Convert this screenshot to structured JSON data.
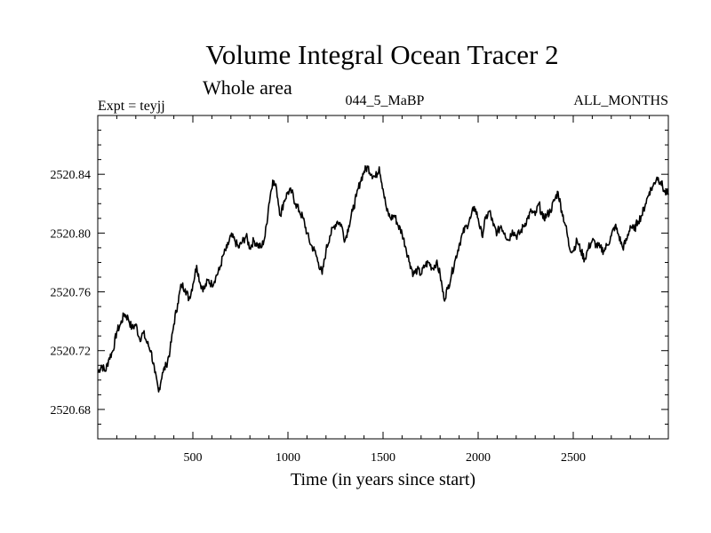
{
  "chart_data": {
    "type": "line",
    "title": "Volume Integral Ocean Tracer 2",
    "subtitle": "Whole area",
    "annotations": {
      "left": "Expt = teyjj",
      "center": "044_5_MaBP",
      "right": "ALL_MONTHS"
    },
    "xlabel": "Time (in years since start)",
    "ylabel": "",
    "xlim": [
      0,
      3000
    ],
    "ylim": [
      2520.66,
      2520.88
    ],
    "x_ticks": [
      500,
      1000,
      1500,
      2000,
      2500
    ],
    "x_tick_labels": [
      "500",
      "1000",
      "1500",
      "2000",
      "2500"
    ],
    "y_ticks": [
      2520.68,
      2520.72,
      2520.76,
      2520.8,
      2520.84
    ],
    "y_tick_labels": [
      "2520.68",
      "2520.72",
      "2520.76",
      "2520.80",
      "2520.84"
    ],
    "grid": false,
    "series": [
      {
        "points": [
          [
            0,
            2520.705
          ],
          [
            20,
            2520.71
          ],
          [
            40,
            2520.706
          ],
          [
            60,
            2520.715
          ],
          [
            80,
            2520.72
          ],
          [
            100,
            2520.733
          ],
          [
            120,
            2520.738
          ],
          [
            140,
            2520.745
          ],
          [
            160,
            2520.742
          ],
          [
            180,
            2520.735
          ],
          [
            200,
            2520.738
          ],
          [
            220,
            2520.728
          ],
          [
            240,
            2520.732
          ],
          [
            260,
            2520.725
          ],
          [
            280,
            2520.72
          ],
          [
            300,
            2520.705
          ],
          [
            320,
            2520.692
          ],
          [
            340,
            2520.705
          ],
          [
            360,
            2520.71
          ],
          [
            380,
            2520.72
          ],
          [
            400,
            2520.738
          ],
          [
            420,
            2520.752
          ],
          [
            440,
            2520.765
          ],
          [
            460,
            2520.762
          ],
          [
            480,
            2520.755
          ],
          [
            500,
            2520.765
          ],
          [
            520,
            2520.778
          ],
          [
            540,
            2520.765
          ],
          [
            560,
            2520.762
          ],
          [
            580,
            2520.768
          ],
          [
            600,
            2520.765
          ],
          [
            620,
            2520.77
          ],
          [
            640,
            2520.775
          ],
          [
            660,
            2520.785
          ],
          [
            680,
            2520.79
          ],
          [
            700,
            2520.798
          ],
          [
            720,
            2520.795
          ],
          [
            740,
            2520.79
          ],
          [
            760,
            2520.794
          ],
          [
            780,
            2520.798
          ],
          [
            800,
            2520.79
          ],
          [
            820,
            2520.795
          ],
          [
            840,
            2520.792
          ],
          [
            860,
            2520.79
          ],
          [
            880,
            2520.798
          ],
          [
            900,
            2520.82
          ],
          [
            920,
            2520.836
          ],
          [
            940,
            2520.83
          ],
          [
            960,
            2520.812
          ],
          [
            980,
            2520.822
          ],
          [
            1000,
            2520.828
          ],
          [
            1020,
            2520.828
          ],
          [
            1040,
            2520.82
          ],
          [
            1060,
            2520.815
          ],
          [
            1080,
            2520.81
          ],
          [
            1100,
            2520.8
          ],
          [
            1120,
            2520.792
          ],
          [
            1140,
            2520.788
          ],
          [
            1160,
            2520.78
          ],
          [
            1180,
            2520.772
          ],
          [
            1200,
            2520.788
          ],
          [
            1220,
            2520.798
          ],
          [
            1240,
            2520.804
          ],
          [
            1260,
            2520.808
          ],
          [
            1280,
            2520.806
          ],
          [
            1300,
            2520.795
          ],
          [
            1320,
            2520.805
          ],
          [
            1340,
            2520.815
          ],
          [
            1360,
            2520.825
          ],
          [
            1380,
            2520.835
          ],
          [
            1400,
            2520.842
          ],
          [
            1420,
            2520.845
          ],
          [
            1440,
            2520.84
          ],
          [
            1460,
            2520.838
          ],
          [
            1480,
            2520.845
          ],
          [
            1500,
            2520.83
          ],
          [
            1520,
            2520.815
          ],
          [
            1540,
            2520.81
          ],
          [
            1560,
            2520.812
          ],
          [
            1580,
            2520.805
          ],
          [
            1600,
            2520.8
          ],
          [
            1620,
            2520.79
          ],
          [
            1640,
            2520.78
          ],
          [
            1660,
            2520.772
          ],
          [
            1680,
            2520.775
          ],
          [
            1700,
            2520.772
          ],
          [
            1720,
            2520.778
          ],
          [
            1740,
            2520.78
          ],
          [
            1760,
            2520.776
          ],
          [
            1780,
            2520.78
          ],
          [
            1800,
            2520.772
          ],
          [
            1820,
            2520.755
          ],
          [
            1840,
            2520.762
          ],
          [
            1860,
            2520.772
          ],
          [
            1880,
            2520.782
          ],
          [
            1900,
            2520.792
          ],
          [
            1920,
            2520.8
          ],
          [
            1940,
            2520.805
          ],
          [
            1960,
            2520.81
          ],
          [
            1980,
            2520.818
          ],
          [
            2000,
            2520.81
          ],
          [
            2020,
            2520.798
          ],
          [
            2040,
            2520.81
          ],
          [
            2060,
            2520.815
          ],
          [
            2080,
            2520.805
          ],
          [
            2100,
            2520.8
          ],
          [
            2120,
            2520.805
          ],
          [
            2140,
            2520.8
          ],
          [
            2160,
            2520.795
          ],
          [
            2180,
            2520.802
          ],
          [
            2200,
            2520.798
          ],
          [
            2220,
            2520.8
          ],
          [
            2240,
            2520.805
          ],
          [
            2260,
            2520.81
          ],
          [
            2280,
            2520.815
          ],
          [
            2300,
            2520.812
          ],
          [
            2320,
            2520.82
          ],
          [
            2340,
            2520.81
          ],
          [
            2360,
            2520.812
          ],
          [
            2380,
            2520.815
          ],
          [
            2400,
            2520.822
          ],
          [
            2420,
            2520.828
          ],
          [
            2440,
            2520.815
          ],
          [
            2460,
            2520.805
          ],
          [
            2480,
            2520.79
          ],
          [
            2500,
            2520.788
          ],
          [
            2520,
            2520.795
          ],
          [
            2540,
            2520.788
          ],
          [
            2560,
            2520.782
          ],
          [
            2580,
            2520.79
          ],
          [
            2600,
            2520.795
          ],
          [
            2620,
            2520.792
          ],
          [
            2640,
            2520.79
          ],
          [
            2660,
            2520.788
          ],
          [
            2680,
            2520.792
          ],
          [
            2700,
            2520.798
          ],
          [
            2720,
            2520.805
          ],
          [
            2740,
            2520.798
          ],
          [
            2760,
            2520.79
          ],
          [
            2780,
            2520.795
          ],
          [
            2800,
            2520.805
          ],
          [
            2820,
            2520.802
          ],
          [
            2840,
            2520.808
          ],
          [
            2860,
            2520.812
          ],
          [
            2880,
            2520.82
          ],
          [
            2900,
            2520.828
          ],
          [
            2920,
            2520.832
          ],
          [
            2940,
            2520.838
          ],
          [
            2960,
            2520.835
          ],
          [
            2980,
            2520.828
          ],
          [
            3000,
            2520.826
          ]
        ]
      }
    ]
  }
}
